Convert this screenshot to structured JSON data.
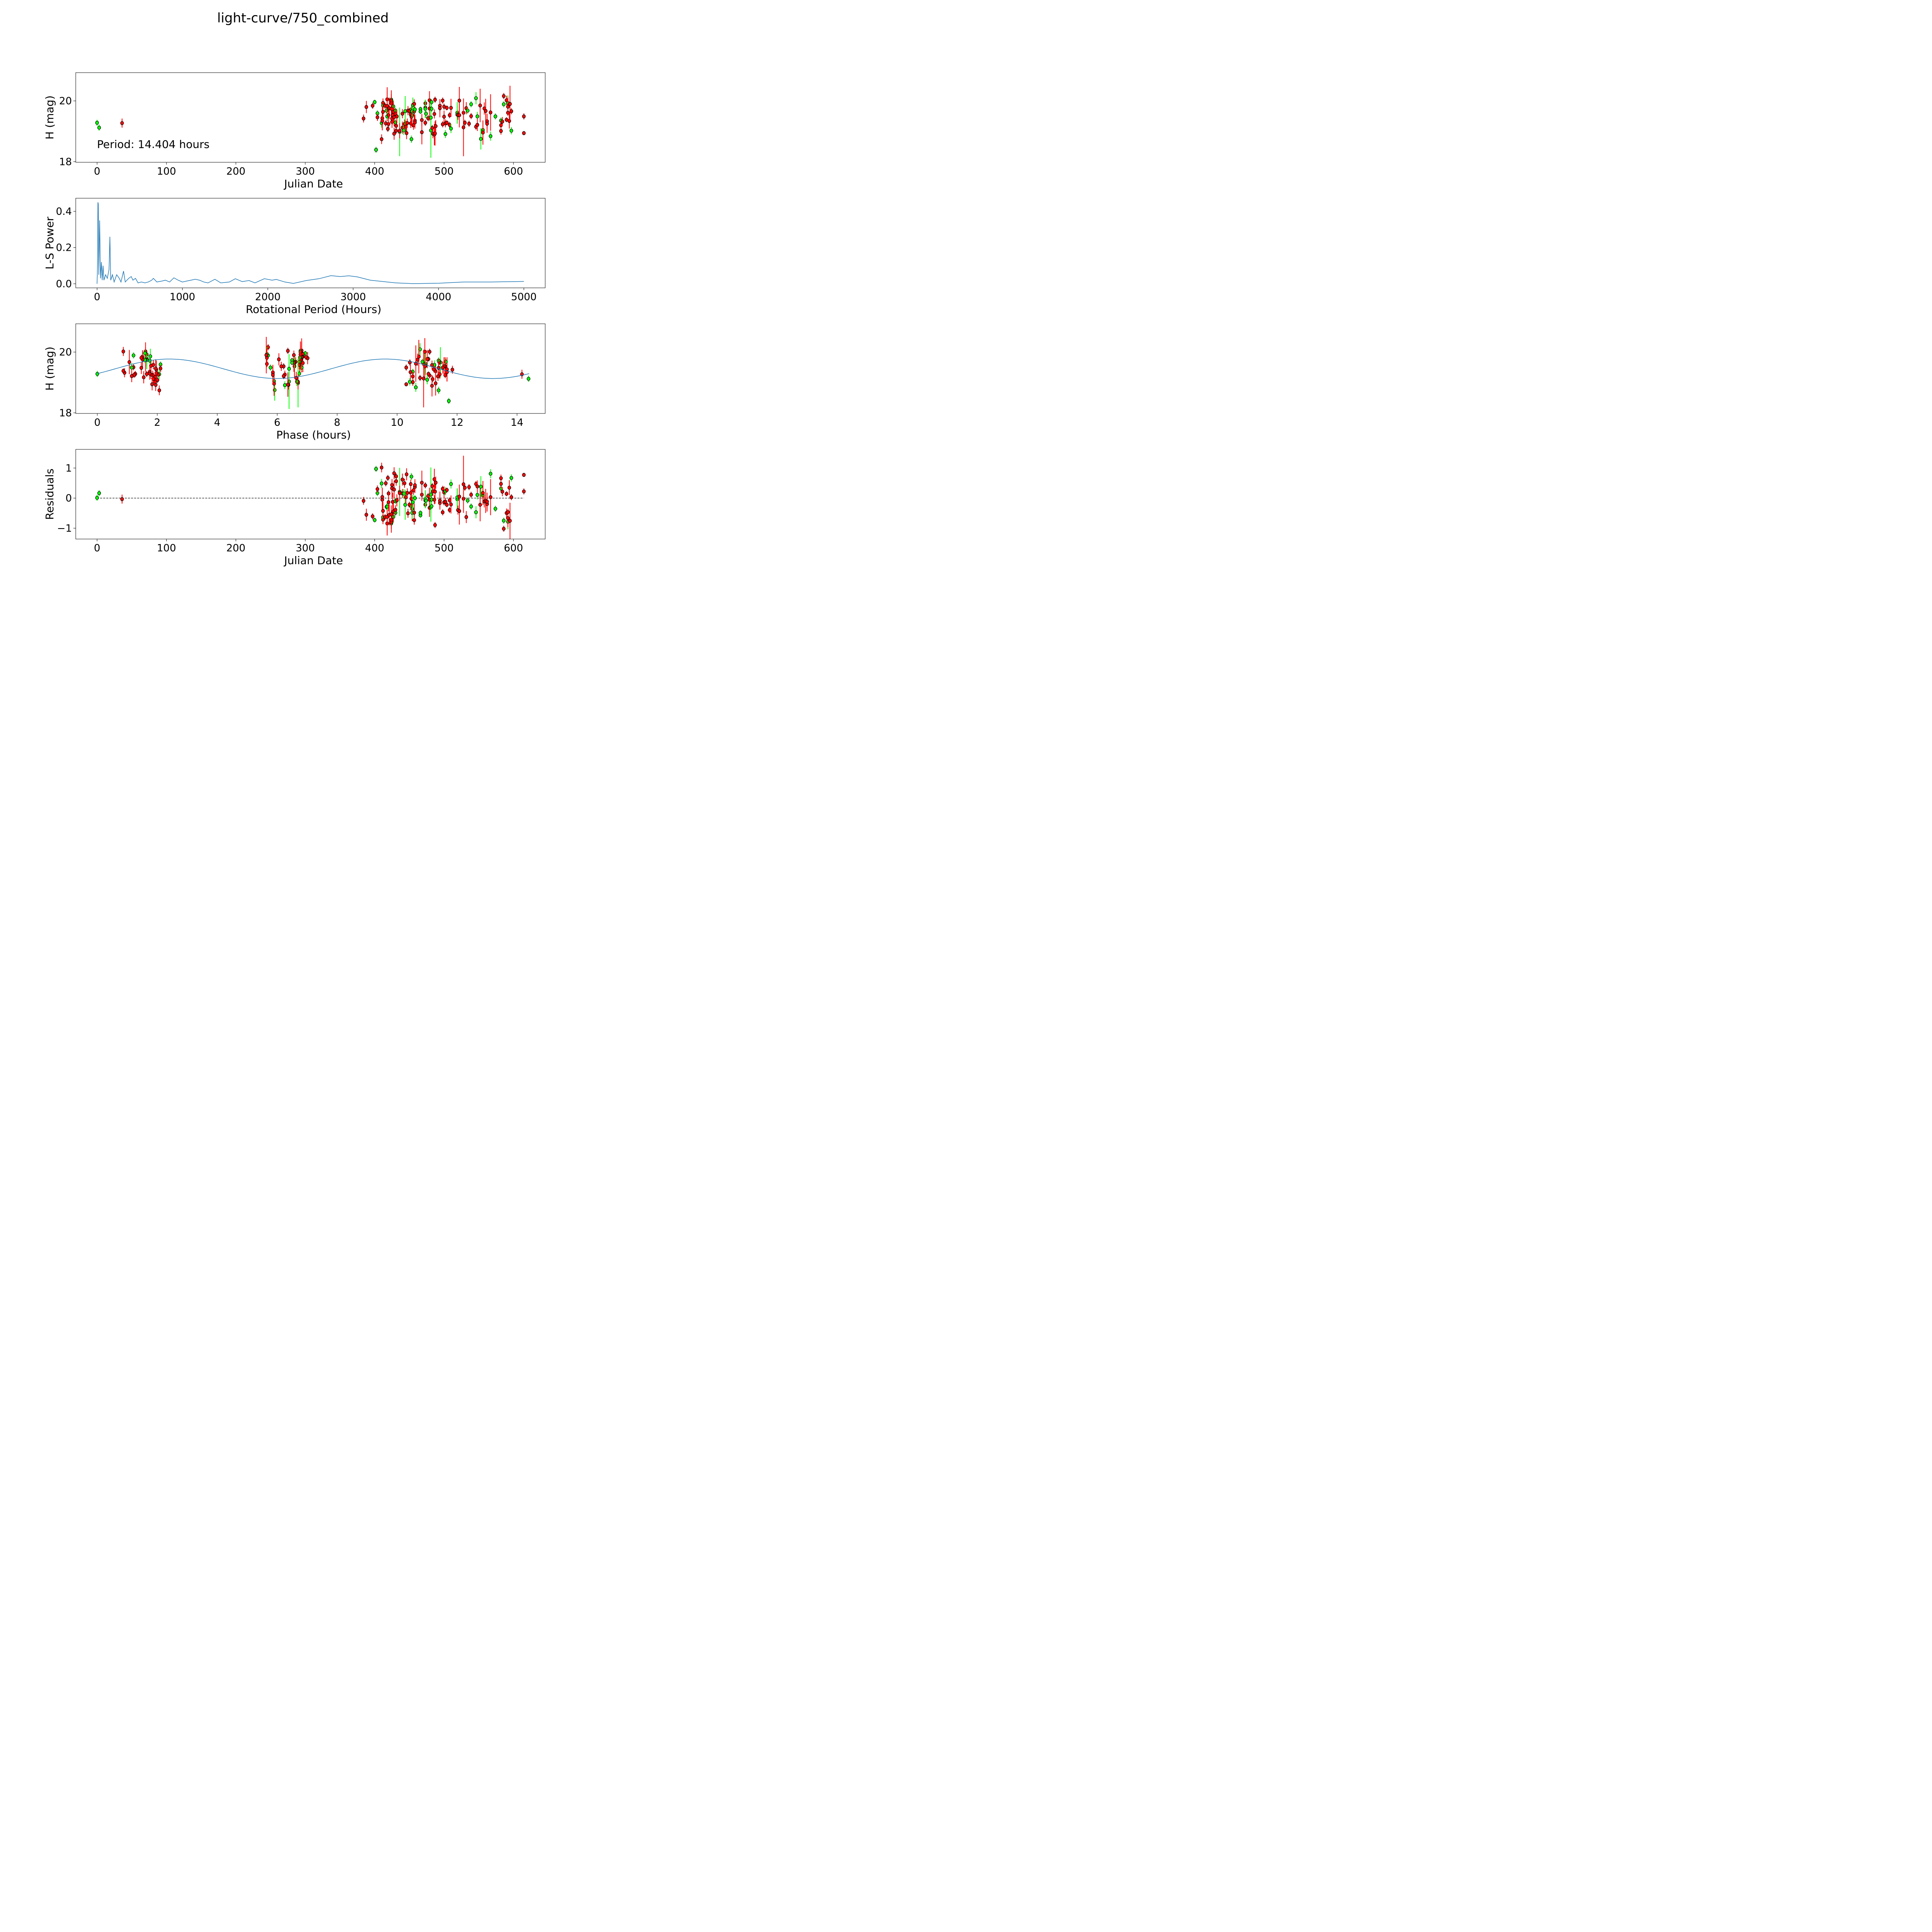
{
  "title": "light-curve/750_combined",
  "colors": {
    "r": "#ff0000",
    "g": "#00ff00",
    "edge": "#000000",
    "model": "#1f77b4",
    "periodogram": "#1f77b4"
  },
  "chart_data": [
    {
      "id": "lightcurve",
      "type": "scatter",
      "xlabel": "Julian Date",
      "ylabel": "H (mag)",
      "xlim": [
        -30.75,
        645.75
      ],
      "ylim": [
        17.98,
        20.93
      ],
      "xticks": [
        0,
        100,
        200,
        300,
        400,
        500,
        600
      ],
      "yticks": [
        18,
        20
      ],
      "annotation": "Period: 14.404 hours",
      "observations": [
        [
          0,
          19.28,
          0.1,
          "g"
        ],
        [
          3,
          19.12,
          0.1,
          "g"
        ],
        [
          36,
          19.27,
          0.15,
          "r"
        ],
        [
          384,
          19.42,
          0.13,
          "r"
        ],
        [
          388,
          19.8,
          0.2,
          "r"
        ],
        [
          397,
          19.84,
          0.1,
          "r"
        ],
        [
          400,
          19.96,
          0.08,
          "g"
        ],
        [
          402,
          18.39,
          0.1,
          "g"
        ],
        [
          404,
          19.59,
          0.1,
          "g"
        ],
        [
          404,
          19.46,
          0.12,
          "r"
        ],
        [
          410,
          18.74,
          0.16,
          "r"
        ],
        [
          410,
          19.27,
          0.15,
          "g"
        ],
        [
          411,
          19.43,
          0.4,
          "r"
        ],
        [
          411,
          19.34,
          0.3,
          "r"
        ],
        [
          412,
          19.93,
          0.15,
          "r"
        ],
        [
          412,
          19.85,
          0.1,
          "g"
        ],
        [
          412,
          19.64,
          0.3,
          "r"
        ],
        [
          415,
          19.84,
          0.1,
          "r"
        ],
        [
          416,
          19.26,
          0.1,
          "r"
        ],
        [
          417,
          19.68,
          0.1,
          "g"
        ],
        [
          418,
          20.05,
          0.4,
          "r"
        ],
        [
          418,
          19.83,
          0.5,
          "r"
        ],
        [
          418,
          19.49,
          0.1,
          "g"
        ],
        [
          419,
          19.08,
          0.1,
          "r"
        ],
        [
          420,
          19.24,
          0.1,
          "r"
        ],
        [
          420,
          19.53,
          0.3,
          "r"
        ],
        [
          421,
          19.76,
          0.35,
          "r"
        ],
        [
          424,
          20.04,
          0.1,
          "g"
        ],
        [
          424,
          20.0,
          0.35,
          "r"
        ],
        [
          424,
          19.92,
          0.3,
          "r"
        ],
        [
          424,
          19.74,
          0.3,
          "r"
        ],
        [
          425,
          19.31,
          0.2,
          "r"
        ],
        [
          425,
          19.42,
          0.3,
          "r"
        ],
        [
          426,
          19.53,
          0.3,
          "r"
        ],
        [
          427,
          19.82,
          0.2,
          "g"
        ],
        [
          427,
          19.64,
          0.35,
          "r"
        ],
        [
          428,
          18.92,
          0.2,
          "r"
        ],
        [
          428,
          19.46,
          0.3,
          "r"
        ],
        [
          430,
          19.68,
          0.1,
          "g"
        ],
        [
          430,
          19.58,
          0.15,
          "r"
        ],
        [
          430,
          19.29,
          0.1,
          "g"
        ],
        [
          431,
          19.18,
          0.15,
          "r"
        ],
        [
          431,
          19.02,
          0.1,
          "r"
        ],
        [
          432,
          19.49,
          0.2,
          "r"
        ],
        [
          436,
          18.98,
          0.8,
          "g"
        ],
        [
          436,
          19.02,
          0.25,
          "r"
        ],
        [
          440,
          19.58,
          0.15,
          "r"
        ],
        [
          440,
          19.12,
          0.2,
          "r"
        ],
        [
          442,
          19.03,
          0.15,
          "g"
        ],
        [
          443,
          19.24,
          0.15,
          "r"
        ],
        [
          444,
          19.66,
          0.5,
          "g"
        ],
        [
          445,
          19.15,
          0.2,
          "r"
        ],
        [
          446,
          18.94,
          0.2,
          "r"
        ],
        [
          447,
          19.27,
          0.15,
          "r"
        ],
        [
          448,
          19.68,
          0.15,
          "r"
        ],
        [
          450,
          19.67,
          0.1,
          "r"
        ],
        [
          452,
          19.26,
          0.15,
          "r"
        ],
        [
          452,
          19.55,
          0.2,
          "r"
        ],
        [
          453,
          18.74,
          0.12,
          "g"
        ],
        [
          453,
          19.72,
          0.1,
          "g"
        ],
        [
          453,
          19.48,
          0.3,
          "r"
        ],
        [
          454,
          19.53,
          0.4,
          "r"
        ],
        [
          454,
          19.66,
          0.2,
          "g"
        ],
        [
          455,
          19.86,
          0.25,
          "g"
        ],
        [
          456,
          19.2,
          0.15,
          "r"
        ],
        [
          457,
          19.9,
          0.15,
          "r"
        ],
        [
          457,
          19.65,
          0.3,
          "r"
        ],
        [
          458,
          19.72,
          0.1,
          "g"
        ],
        [
          458,
          19.35,
          0.2,
          "r"
        ],
        [
          458,
          19.29,
          0.2,
          "r"
        ],
        [
          466,
          19.73,
          0.08,
          "g"
        ],
        [
          466,
          19.65,
          0.08,
          "g"
        ],
        [
          468,
          19.37,
          0.2,
          "r"
        ],
        [
          468,
          18.97,
          0.4,
          "r"
        ],
        [
          473,
          19.92,
          0.1,
          "r"
        ],
        [
          473,
          19.78,
          0.25,
          "r"
        ],
        [
          473,
          19.74,
          0.3,
          "g"
        ],
        [
          473,
          19.28,
          0.1,
          "r"
        ],
        [
          474,
          19.58,
          0.15,
          "g"
        ],
        [
          477,
          19.43,
          0.1,
          "r"
        ],
        [
          479,
          20.02,
          0.3,
          "r"
        ],
        [
          479,
          19.75,
          0.4,
          "r"
        ],
        [
          481,
          19.03,
          0.9,
          "g"
        ],
        [
          481,
          19.45,
          0.2,
          "g"
        ],
        [
          482,
          19.96,
          0.1,
          "g"
        ],
        [
          482,
          19.74,
          0.1,
          "g"
        ],
        [
          483,
          19.11,
          0.1,
          "r"
        ],
        [
          484,
          18.92,
          0.15,
          "r"
        ],
        [
          486,
          19.57,
          0.15,
          "r"
        ],
        [
          486,
          18.89,
          0.35,
          "r"
        ],
        [
          487,
          20.04,
          0.1,
          "r"
        ],
        [
          487,
          18.93,
          0.4,
          "r"
        ],
        [
          488,
          19.17,
          0.2,
          "r"
        ],
        [
          494,
          19.84,
          0.2,
          "r"
        ],
        [
          494,
          19.76,
          0.3,
          "r"
        ],
        [
          498,
          20.01,
          0.1,
          "r"
        ],
        [
          498,
          19.23,
          0.1,
          "r"
        ],
        [
          500,
          19.81,
          0.1,
          "r"
        ],
        [
          500,
          19.48,
          0.2,
          "r"
        ],
        [
          502,
          18.91,
          0.13,
          "g"
        ],
        [
          502,
          19.26,
          0.13,
          "r"
        ],
        [
          504,
          19.28,
          0.08,
          "r"
        ],
        [
          504,
          19.77,
          0.08,
          "r"
        ],
        [
          508,
          19.53,
          0.1,
          "r"
        ],
        [
          508,
          19.21,
          0.1,
          "r"
        ],
        [
          510,
          19.09,
          0.15,
          "g"
        ],
        [
          510,
          19.77,
          0.3,
          "r"
        ],
        [
          519,
          19.61,
          0.35,
          "g"
        ],
        [
          519,
          19.55,
          0.3,
          "g"
        ],
        [
          520,
          19.53,
          0.15,
          "r"
        ],
        [
          522,
          19.53,
          0.4,
          "r"
        ],
        [
          522,
          20.01,
          0.45,
          "r"
        ],
        [
          528,
          19.61,
          0.2,
          "r"
        ],
        [
          528,
          19.13,
          0.95,
          "r"
        ],
        [
          530,
          19.28,
          0.1,
          "r"
        ],
        [
          532,
          19.76,
          0.2,
          "r"
        ],
        [
          534,
          19.68,
          0.1,
          "g"
        ],
        [
          536,
          19.25,
          0.1,
          "r"
        ],
        [
          539,
          19.89,
          0.1,
          "g"
        ],
        [
          539,
          19.5,
          0.1,
          "r"
        ],
        [
          546,
          20.09,
          0.2,
          "g"
        ],
        [
          546,
          19.15,
          0.1,
          "r"
        ],
        [
          548,
          19.49,
          0.15,
          "g"
        ],
        [
          548,
          19.21,
          0.2,
          "r"
        ],
        [
          552,
          19.85,
          0.55,
          "r"
        ],
        [
          553,
          18.75,
          0.35,
          "g"
        ],
        [
          556,
          19.04,
          0.3,
          "g"
        ],
        [
          556,
          18.96,
          0.4,
          "r"
        ],
        [
          558,
          19.75,
          0.2,
          "r"
        ],
        [
          560,
          19.67,
          0.4,
          "r"
        ],
        [
          562,
          19.33,
          0.25,
          "r"
        ],
        [
          562,
          19.25,
          0.3,
          "r"
        ],
        [
          567,
          19.62,
          0.6,
          "r"
        ],
        [
          567,
          18.84,
          0.15,
          "g"
        ],
        [
          574,
          19.49,
          0.1,
          "g"
        ],
        [
          582,
          19.35,
          0.1,
          "g"
        ],
        [
          582,
          19.2,
          0.15,
          "r"
        ],
        [
          582,
          19.01,
          0.12,
          "r"
        ],
        [
          584,
          19.32,
          0.15,
          "r"
        ],
        [
          586,
          20.16,
          0.1,
          "r"
        ],
        [
          586,
          19.89,
          0.1,
          "g"
        ],
        [
          590,
          20.02,
          0.15,
          "r"
        ],
        [
          590,
          19.38,
          0.08,
          "r"
        ],
        [
          592,
          19.93,
          0.25,
          "g"
        ],
        [
          592,
          19.81,
          0.3,
          "r"
        ],
        [
          592,
          19.61,
          0.1,
          "r"
        ],
        [
          594,
          19.34,
          0.25,
          "r"
        ],
        [
          595,
          19.9,
          0.6,
          "r"
        ],
        [
          597,
          19.66,
          0.1,
          "r"
        ],
        [
          597,
          19.02,
          0.12,
          "g"
        ],
        [
          615,
          19.49,
          0.1,
          "r"
        ],
        [
          615,
          18.94,
          0.06,
          "r"
        ]
      ]
    },
    {
      "id": "periodogram",
      "type": "line",
      "xlabel": "Rotational Period (Hours)",
      "ylabel": "L-S Power",
      "xlim": [
        -250,
        5250
      ],
      "ylim": [
        -0.0225,
        0.4725
      ],
      "xticks": [
        0,
        1000,
        2000,
        3000,
        4000,
        5000
      ],
      "yticks": [
        0.0,
        0.2,
        0.4
      ],
      "ytick_labels": [
        "0.0",
        "0.2",
        "0.4"
      ],
      "x": [
        0,
        5,
        10,
        14.4,
        20,
        30,
        40,
        50,
        60,
        70,
        80,
        100,
        120,
        140,
        150,
        160,
        180,
        200,
        230,
        260,
        280,
        310,
        330,
        370,
        400,
        420,
        450,
        480,
        520,
        560,
        600,
        640,
        660,
        700,
        760,
        800,
        850,
        900,
        950,
        1000,
        1050,
        1100,
        1150,
        1200,
        1250,
        1300,
        1380,
        1450,
        1550,
        1620,
        1700,
        1780,
        1850,
        1960,
        2050,
        2100,
        2200,
        2300,
        2450,
        2600,
        2740,
        2850,
        2950,
        3050,
        3200,
        3500,
        3700,
        4000,
        4300,
        4600,
        5000
      ],
      "y": [
        0,
        0.1,
        0.45,
        0.44,
        0.05,
        0.35,
        0.03,
        0.12,
        0.02,
        0.1,
        0.02,
        0.05,
        0.03,
        0.08,
        0.26,
        0.02,
        0.05,
        0.01,
        0.05,
        0.03,
        0.01,
        0.07,
        0.01,
        0.03,
        0.04,
        0.02,
        0.03,
        0.005,
        0.01,
        0.005,
        0.01,
        0.02,
        0.03,
        0.01,
        0.015,
        0.02,
        0.01,
        0.033,
        0.02,
        0.01,
        0.015,
        0.02,
        0.025,
        0.02,
        0.01,
        0.005,
        0.025,
        0.005,
        0.01,
        0.028,
        0.012,
        0.018,
        0.005,
        0.028,
        0.02,
        0.024,
        0.01,
        0.002,
        0.018,
        0.028,
        0.045,
        0.04,
        0.044,
        0.038,
        0.02,
        0.005,
        0.001,
        0.003,
        0.01,
        0.01,
        0.013
      ]
    },
    {
      "id": "phased",
      "type": "scatter",
      "xlabel": "Phase (hours)",
      "ylabel": "H (mag)",
      "xlim": [
        -0.72,
        14.94
      ],
      "ylim": [
        17.98,
        20.93
      ],
      "xticks": [
        0,
        2,
        4,
        6,
        8,
        10,
        12,
        14
      ],
      "yticks": [
        18,
        20
      ],
      "period_hours": 14.404,
      "model": {
        "mean": 19.45,
        "amplitude": 0.32,
        "harmonic_period_hours": 7.202,
        "phase_offset_hours": 0.6
      },
      "source": "observations of lightcurve folded at period_hours"
    },
    {
      "id": "residuals",
      "type": "scatter",
      "xlabel": "Julian Date",
      "ylabel": "Residuals",
      "xlim": [
        -30.75,
        645.75
      ],
      "ylim": [
        -1.36,
        1.62
      ],
      "xticks": [
        0,
        100,
        200,
        300,
        400,
        500,
        600
      ],
      "yticks": [
        -1,
        0,
        1
      ],
      "ytick_labels": [
        "−1",
        "0",
        "1"
      ],
      "reference_line": 0,
      "source": "model minus observed magnitude"
    }
  ]
}
